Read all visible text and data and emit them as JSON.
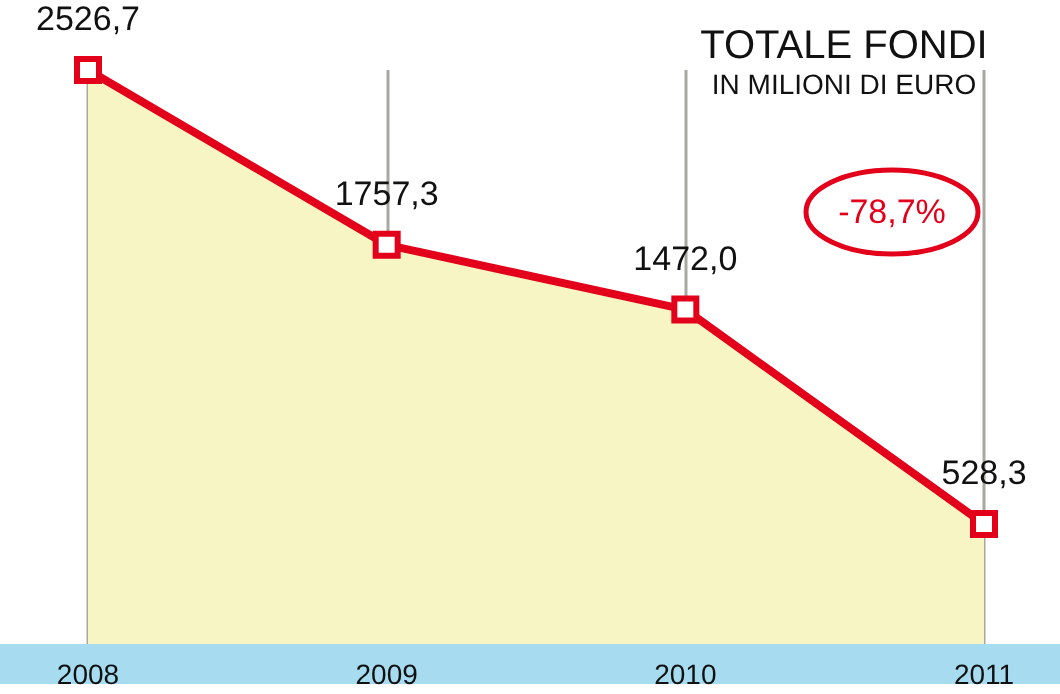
{
  "chart_data": {
    "type": "area",
    "title": "TOTALE FONDI",
    "subtitle": "IN MILIONI DI EURO",
    "categories": [
      "2008",
      "2009",
      "2010",
      "2011"
    ],
    "series": [
      {
        "color": "#e2001a",
        "values": [
          2526.7,
          1757.3,
          1472.0,
          528.3
        ],
        "value_labels": [
          "2526,7",
          "1757,3",
          "1472,0",
          "528,3"
        ]
      }
    ],
    "annotations": [
      "-78,7%"
    ],
    "grid": "x",
    "marker": "square"
  }
}
